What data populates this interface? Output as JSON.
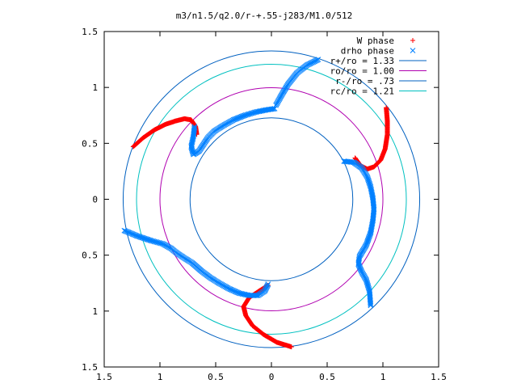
{
  "chart_data": {
    "type": "scatter",
    "title": "m3/n1.5/q2.0/r-+.55-j283/M1.0/512",
    "xlabel": "",
    "ylabel": "",
    "xlim": [
      -1.5,
      1.5
    ],
    "ylim": [
      -1.5,
      1.5
    ],
    "x_ticks": [
      -1.5,
      -1,
      -0.5,
      0,
      0.5,
      1,
      1.5
    ],
    "y_ticks": [
      -1.5,
      -1,
      -0.5,
      0,
      0.5,
      1,
      1.5
    ],
    "x_tick_labels": [
      "1.5",
      "1",
      "0.5",
      "0",
      "0.5",
      "1",
      "1.5"
    ],
    "y_tick_labels": [
      "1.5",
      "1",
      "0.5",
      "0",
      "0.5",
      "1",
      "1.5"
    ],
    "grid": false,
    "legend_position": "top-right",
    "series": [
      {
        "name": "W phase",
        "marker": "plus",
        "color": "#ff0000",
        "arms": [
          [
            [
              -1.24,
              0.47
            ],
            [
              -1.15,
              0.55
            ],
            [
              -1.05,
              0.62
            ],
            [
              -0.95,
              0.67
            ],
            [
              -0.86,
              0.7
            ],
            [
              -0.78,
              0.72
            ],
            [
              -0.72,
              0.71
            ],
            [
              -0.68,
              0.65
            ],
            [
              -0.67,
              0.58
            ]
          ],
          [
            [
              1.03,
              0.82
            ],
            [
              1.04,
              0.7
            ],
            [
              1.04,
              0.58
            ],
            [
              1.02,
              0.45
            ],
            [
              0.98,
              0.35
            ],
            [
              0.92,
              0.29
            ],
            [
              0.86,
              0.27
            ],
            [
              0.8,
              0.3
            ],
            [
              0.75,
              0.37
            ]
          ],
          [
            [
              0.18,
              -1.32
            ],
            [
              0.05,
              -1.28
            ],
            [
              -0.07,
              -1.21
            ],
            [
              -0.17,
              -1.13
            ],
            [
              -0.23,
              -1.04
            ],
            [
              -0.25,
              -0.96
            ],
            [
              -0.2,
              -0.88
            ],
            [
              -0.11,
              -0.82
            ],
            [
              -0.03,
              -0.77
            ]
          ]
        ]
      },
      {
        "name": "drho phase",
        "marker": "cross",
        "color": "#0080ff",
        "arms": [
          [
            [
              -1.32,
              -0.28
            ],
            [
              -1.2,
              -0.33
            ],
            [
              -1.08,
              -0.37
            ],
            [
              -0.97,
              -0.4
            ],
            [
              -0.9,
              -0.44
            ],
            [
              -0.85,
              -0.48
            ],
            [
              -0.79,
              -0.52
            ],
            [
              -0.71,
              -0.57
            ],
            [
              -0.63,
              -0.64
            ],
            [
              -0.55,
              -0.7
            ],
            [
              -0.47,
              -0.75
            ],
            [
              -0.38,
              -0.8
            ],
            [
              -0.29,
              -0.84
            ],
            [
              -0.2,
              -0.86
            ],
            [
              -0.12,
              -0.86
            ],
            [
              -0.06,
              -0.82
            ],
            [
              -0.03,
              -0.76
            ]
          ],
          [
            [
              -0.69,
              0.65
            ],
            [
              -0.7,
              0.56
            ],
            [
              -0.72,
              0.47
            ],
            [
              -0.7,
              0.4
            ],
            [
              -0.65,
              0.43
            ],
            [
              -0.61,
              0.49
            ],
            [
              -0.57,
              0.55
            ],
            [
              -0.51,
              0.61
            ],
            [
              -0.43,
              0.66
            ],
            [
              -0.34,
              0.71
            ],
            [
              -0.24,
              0.75
            ],
            [
              -0.14,
              0.78
            ],
            [
              -0.04,
              0.8
            ],
            [
              0.03,
              0.81
            ]
          ],
          [
            [
              0.04,
              0.84
            ],
            [
              0.09,
              0.93
            ],
            [
              0.15,
              1.03
            ],
            [
              0.23,
              1.13
            ],
            [
              0.32,
              1.2
            ],
            [
              0.42,
              1.25
            ]
          ],
          [
            [
              0.65,
              0.34
            ],
            [
              0.74,
              0.33
            ],
            [
              0.81,
              0.28
            ],
            [
              0.86,
              0.2
            ],
            [
              0.89,
              0.11
            ],
            [
              0.91,
              0.01
            ],
            [
              0.92,
              -0.09
            ],
            [
              0.91,
              -0.19
            ],
            [
              0.89,
              -0.3
            ],
            [
              0.85,
              -0.41
            ],
            [
              0.79,
              -0.51
            ],
            [
              0.78,
              -0.58
            ],
            [
              0.81,
              -0.65
            ],
            [
              0.85,
              -0.72
            ],
            [
              0.88,
              -0.82
            ],
            [
              0.89,
              -0.95
            ]
          ]
        ]
      }
    ],
    "circles": [
      {
        "name": "r+/ro = 1.33",
        "radius": 1.33,
        "color": "#0060c0"
      },
      {
        "name": "ro/ro = 1.00",
        "radius": 1.0,
        "color": "#b000b0"
      },
      {
        "name": "r-/ro = .73",
        "radius": 0.73,
        "color": "#0060c0"
      },
      {
        "name": "rc/ro = 1.21",
        "radius": 1.21,
        "color": "#00c0c0"
      }
    ]
  }
}
